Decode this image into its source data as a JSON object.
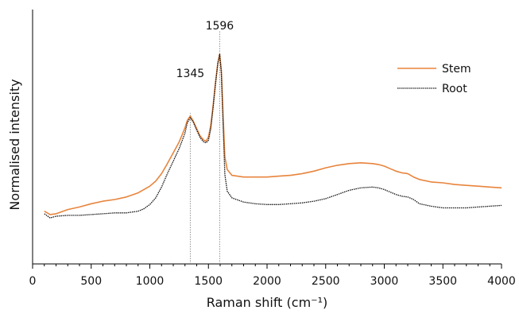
{
  "chart_data": {
    "type": "line",
    "title": "",
    "xlabel": "Raman shift (cm⁻¹)",
    "ylabel": "Normalised intensity",
    "xlim": [
      0,
      4000
    ],
    "x_ticks": [
      0,
      500,
      1000,
      1500,
      2000,
      2500,
      3000,
      3500,
      4000
    ],
    "y_axis_values_shown": false,
    "legend_position": "top-right",
    "annotations": [
      {
        "label": "1345",
        "x": 1345
      },
      {
        "label": "1596",
        "x": 1596
      }
    ],
    "series": [
      {
        "name": "Stem",
        "color": "#e8843c",
        "line_style": "solid",
        "x": [
          100,
          150,
          200,
          300,
          400,
          500,
          600,
          700,
          800,
          900,
          950,
          1000,
          1050,
          1100,
          1150,
          1200,
          1250,
          1280,
          1300,
          1320,
          1345,
          1370,
          1400,
          1430,
          1460,
          1480,
          1500,
          1520,
          1540,
          1560,
          1580,
          1596,
          1610,
          1625,
          1640,
          1660,
          1700,
          1800,
          1900,
          2000,
          2100,
          2200,
          2300,
          2400,
          2500,
          2600,
          2700,
          2800,
          2900,
          2950,
          3000,
          3050,
          3100,
          3150,
          3200,
          3250,
          3300,
          3400,
          3500,
          3600,
          3700,
          3800,
          3900,
          4000
        ],
        "y": [
          0.03,
          0.01,
          0.015,
          0.04,
          0.055,
          0.075,
          0.09,
          0.1,
          0.115,
          0.14,
          0.16,
          0.18,
          0.21,
          0.255,
          0.315,
          0.38,
          0.445,
          0.495,
          0.53,
          0.575,
          0.6,
          0.57,
          0.525,
          0.48,
          0.455,
          0.45,
          0.475,
          0.545,
          0.66,
          0.8,
          0.92,
          0.97,
          0.87,
          0.6,
          0.355,
          0.28,
          0.245,
          0.235,
          0.235,
          0.235,
          0.24,
          0.245,
          0.255,
          0.27,
          0.29,
          0.305,
          0.315,
          0.32,
          0.315,
          0.31,
          0.3,
          0.285,
          0.27,
          0.26,
          0.255,
          0.235,
          0.22,
          0.205,
          0.2,
          0.19,
          0.185,
          0.18,
          0.175,
          0.17
        ]
      },
      {
        "name": "Root",
        "color": "#111111",
        "line_style": "dotted",
        "x": [
          100,
          150,
          200,
          300,
          400,
          500,
          600,
          700,
          800,
          900,
          950,
          1000,
          1050,
          1100,
          1150,
          1200,
          1250,
          1280,
          1300,
          1320,
          1345,
          1370,
          1400,
          1430,
          1460,
          1480,
          1500,
          1520,
          1540,
          1560,
          1580,
          1596,
          1610,
          1625,
          1640,
          1660,
          1700,
          1800,
          1900,
          2000,
          2100,
          2200,
          2300,
          2400,
          2500,
          2600,
          2700,
          2800,
          2900,
          2950,
          3000,
          3050,
          3100,
          3150,
          3200,
          3250,
          3300,
          3400,
          3500,
          3600,
          3700,
          3800,
          3900,
          4000
        ],
        "y": [
          0.015,
          -0.01,
          0.0,
          0.005,
          0.005,
          0.01,
          0.015,
          0.02,
          0.02,
          0.03,
          0.045,
          0.07,
          0.11,
          0.175,
          0.255,
          0.33,
          0.405,
          0.46,
          0.5,
          0.56,
          0.59,
          0.565,
          0.515,
          0.47,
          0.445,
          0.44,
          0.455,
          0.525,
          0.65,
          0.79,
          0.915,
          0.97,
          0.86,
          0.55,
          0.25,
          0.15,
          0.11,
          0.085,
          0.075,
          0.07,
          0.07,
          0.075,
          0.08,
          0.09,
          0.105,
          0.13,
          0.155,
          0.17,
          0.175,
          0.17,
          0.16,
          0.145,
          0.13,
          0.12,
          0.115,
          0.1,
          0.075,
          0.06,
          0.05,
          0.05,
          0.05,
          0.055,
          0.06,
          0.065
        ]
      }
    ]
  }
}
